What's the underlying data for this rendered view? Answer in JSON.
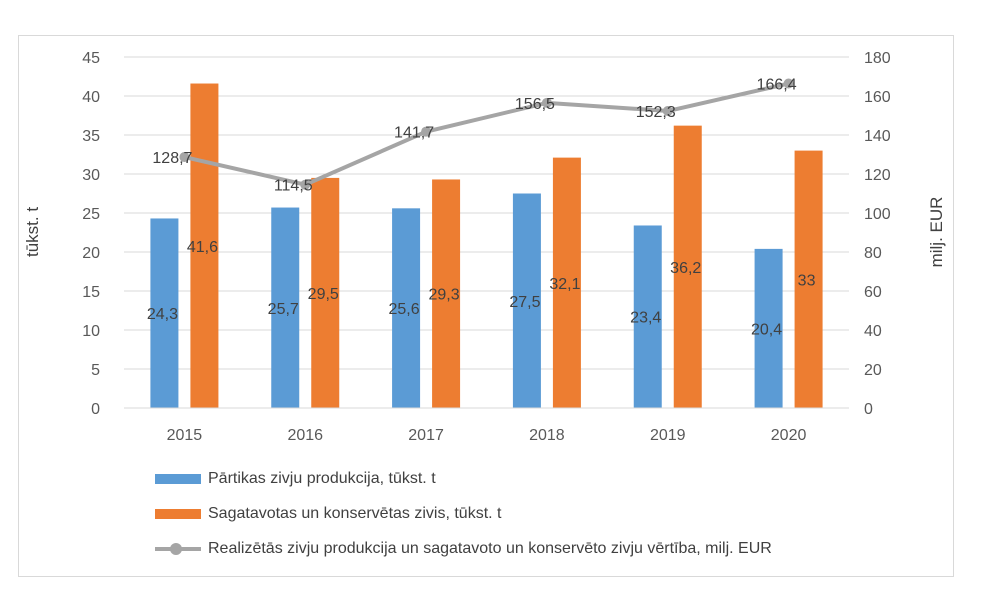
{
  "chart_data": {
    "type": "bar+line",
    "categories": [
      "2015",
      "2016",
      "2017",
      "2018",
      "2019",
      "2020"
    ],
    "series": [
      {
        "name": "Pārtikas zivju produkcija, tūkst. t",
        "type": "bar",
        "axis": "left",
        "values": [
          24.3,
          25.7,
          25.6,
          27.5,
          23.4,
          20.4
        ],
        "labels": [
          "24,3",
          "25,7",
          "25,6",
          "27,5",
          "23,4",
          "20,4"
        ],
        "color": "#5b9bd5"
      },
      {
        "name": "Sagatavotas un konservētas zivis, tūkst. t",
        "type": "bar",
        "axis": "left",
        "values": [
          41.6,
          29.5,
          29.3,
          32.1,
          36.2,
          33
        ],
        "labels": [
          "41,6",
          "29,5",
          "29,3",
          "32,1",
          "36,2",
          "33"
        ],
        "color": "#ed7d31"
      },
      {
        "name": "Realizētās zivju produkcija un sagatavoto un konservēto zivju vērtība, milj. EUR",
        "type": "line",
        "axis": "right",
        "values": [
          128.7,
          114.5,
          141.7,
          156.5,
          152.3,
          166.4
        ],
        "labels": [
          "128,7",
          "114,5",
          "141,7",
          "156,5",
          "152,3",
          "166,4"
        ],
        "color": "#a5a5a5"
      }
    ],
    "ylabel_left": "tūkst. t",
    "ylabel_right": "milj. EUR",
    "ylim_left": [
      0,
      45
    ],
    "ylim_right": [
      0,
      180
    ],
    "yticks_left": [
      "0",
      "5",
      "10",
      "15",
      "20",
      "25",
      "30",
      "35",
      "40",
      "45"
    ],
    "yticks_right": [
      "0",
      "20",
      "40",
      "60",
      "80",
      "100",
      "120",
      "140",
      "160",
      "180"
    ],
    "grid": true,
    "legend_position": "bottom"
  }
}
